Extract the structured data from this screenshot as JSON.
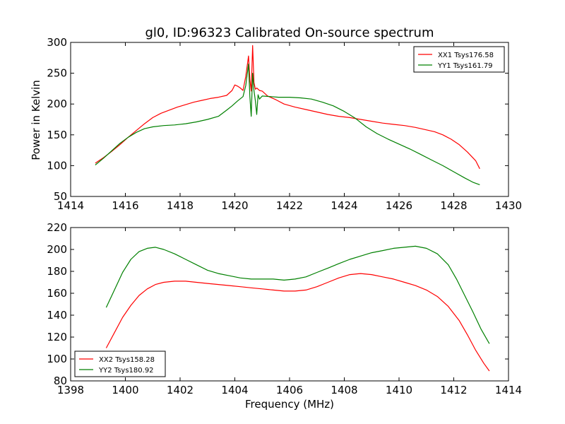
{
  "chart_data": [
    {
      "type": "line",
      "title": "gl0, ID:96323 Calibrated On-source spectrum",
      "xlabel": "",
      "ylabel": "Power in Kelvin",
      "xlim": [
        1414,
        1430
      ],
      "ylim": [
        50,
        300
      ],
      "xticks": [
        "1414",
        "1416",
        "1418",
        "1420",
        "1422",
        "1424",
        "1426",
        "1428",
        "1430"
      ],
      "yticks": [
        "50",
        "100",
        "150",
        "200",
        "250",
        "300"
      ],
      "grid": false,
      "legend_position": "top-right",
      "series": [
        {
          "name": "XX1 Tsys176.58",
          "color": "#ff0000",
          "x": [
            1414.9,
            1415.2,
            1415.5,
            1415.8,
            1416.1,
            1416.4,
            1416.7,
            1417.0,
            1417.3,
            1417.6,
            1417.9,
            1418.2,
            1418.5,
            1418.8,
            1419.1,
            1419.4,
            1419.7,
            1419.9,
            1420.0,
            1420.1,
            1420.2,
            1420.3,
            1420.4,
            1420.5,
            1420.55,
            1420.6,
            1420.65,
            1420.7,
            1420.75,
            1420.8,
            1420.9,
            1421.0,
            1421.2,
            1421.5,
            1421.8,
            1422.2,
            1422.6,
            1423.0,
            1423.4,
            1423.8,
            1424.2,
            1424.6,
            1425.0,
            1425.4,
            1425.8,
            1426.2,
            1426.6,
            1427.0,
            1427.3,
            1427.6,
            1427.9,
            1428.2,
            1428.5,
            1428.8,
            1428.95
          ],
          "values": [
            104,
            113,
            123,
            134,
            146,
            157,
            168,
            178,
            185,
            190,
            195,
            199,
            203,
            206,
            209,
            211,
            214,
            222,
            231,
            229,
            226,
            222,
            245,
            278,
            240,
            221,
            295,
            235,
            224,
            226,
            222,
            221,
            213,
            207,
            200,
            195,
            191,
            187,
            183,
            180,
            178,
            175,
            172,
            169,
            167,
            165,
            162,
            158,
            155,
            150,
            143,
            134,
            122,
            108,
            95
          ]
        },
        {
          "name": "YY1 Tsys161.79",
          "color": "#008000",
          "x": [
            1414.9,
            1415.2,
            1415.5,
            1415.8,
            1416.1,
            1416.4,
            1416.7,
            1417.0,
            1417.4,
            1417.8,
            1418.2,
            1418.6,
            1419.0,
            1419.4,
            1419.7,
            1419.9,
            1420.1,
            1420.3,
            1420.4,
            1420.5,
            1420.55,
            1420.6,
            1420.65,
            1420.7,
            1420.75,
            1420.8,
            1420.85,
            1420.9,
            1421.0,
            1421.3,
            1421.6,
            1422.0,
            1422.4,
            1422.8,
            1423.2,
            1423.6,
            1424.0,
            1424.4,
            1424.8,
            1425.2,
            1425.6,
            1426.0,
            1426.4,
            1426.8,
            1427.2,
            1427.6,
            1428.0,
            1428.4,
            1428.7,
            1428.95
          ],
          "values": [
            101,
            112,
            124,
            136,
            146,
            154,
            160,
            163,
            165,
            166,
            168,
            171,
            175,
            180,
            190,
            197,
            205,
            212,
            230,
            265,
            212,
            180,
            250,
            222,
            205,
            183,
            215,
            208,
            213,
            212,
            211,
            211,
            210,
            208,
            203,
            197,
            188,
            177,
            163,
            152,
            143,
            135,
            127,
            118,
            109,
            100,
            90,
            80,
            73,
            69
          ]
        }
      ]
    },
    {
      "type": "line",
      "title": "",
      "xlabel": "Frequency (MHz)",
      "ylabel": "",
      "xlim": [
        1398,
        1414
      ],
      "ylim": [
        80,
        220
      ],
      "xticks": [
        "1398",
        "1400",
        "1402",
        "1404",
        "1406",
        "1408",
        "1410",
        "1412",
        "1414"
      ],
      "yticks": [
        "80",
        "100",
        "120",
        "140",
        "160",
        "180",
        "200",
        "220"
      ],
      "grid": false,
      "legend_position": "bottom-left",
      "series": [
        {
          "name": "XX2 Tsys158.28",
          "color": "#ff0000",
          "x": [
            1399.3,
            1399.6,
            1399.9,
            1400.2,
            1400.5,
            1400.8,
            1401.1,
            1401.4,
            1401.8,
            1402.2,
            1402.6,
            1403.0,
            1403.4,
            1403.8,
            1404.2,
            1404.6,
            1405.0,
            1405.4,
            1405.8,
            1406.2,
            1406.6,
            1407.0,
            1407.4,
            1407.8,
            1408.2,
            1408.6,
            1409.0,
            1409.4,
            1409.8,
            1410.2,
            1410.6,
            1411.0,
            1411.4,
            1411.8,
            1412.2,
            1412.5,
            1412.8,
            1413.1,
            1413.3
          ],
          "values": [
            110,
            124,
            138,
            149,
            158,
            164,
            168,
            170,
            171,
            171,
            170,
            169,
            168,
            167,
            166,
            165,
            164,
            163,
            162,
            162,
            163,
            166,
            170,
            174,
            177,
            178,
            177,
            175,
            173,
            170,
            167,
            163,
            157,
            148,
            135,
            122,
            108,
            96,
            89
          ]
        },
        {
          "name": "YY2 Tsys180.92",
          "color": "#008000",
          "x": [
            1399.3,
            1399.6,
            1399.9,
            1400.2,
            1400.5,
            1400.8,
            1401.1,
            1401.4,
            1401.8,
            1402.2,
            1402.6,
            1403.0,
            1403.4,
            1403.8,
            1404.2,
            1404.6,
            1405.0,
            1405.4,
            1405.8,
            1406.2,
            1406.6,
            1407.0,
            1407.4,
            1407.8,
            1408.2,
            1408.6,
            1409.0,
            1409.4,
            1409.8,
            1410.2,
            1410.6,
            1411.0,
            1411.4,
            1411.8,
            1412.1,
            1412.4,
            1412.7,
            1413.0,
            1413.3
          ],
          "values": [
            147,
            163,
            179,
            191,
            198,
            201,
            202,
            200,
            196,
            191,
            186,
            181,
            178,
            176,
            174,
            173,
            173,
            173,
            172,
            173,
            175,
            179,
            183,
            187,
            191,
            194,
            197,
            199,
            201,
            202,
            203,
            201,
            196,
            186,
            173,
            158,
            143,
            127,
            114
          ]
        }
      ]
    }
  ]
}
